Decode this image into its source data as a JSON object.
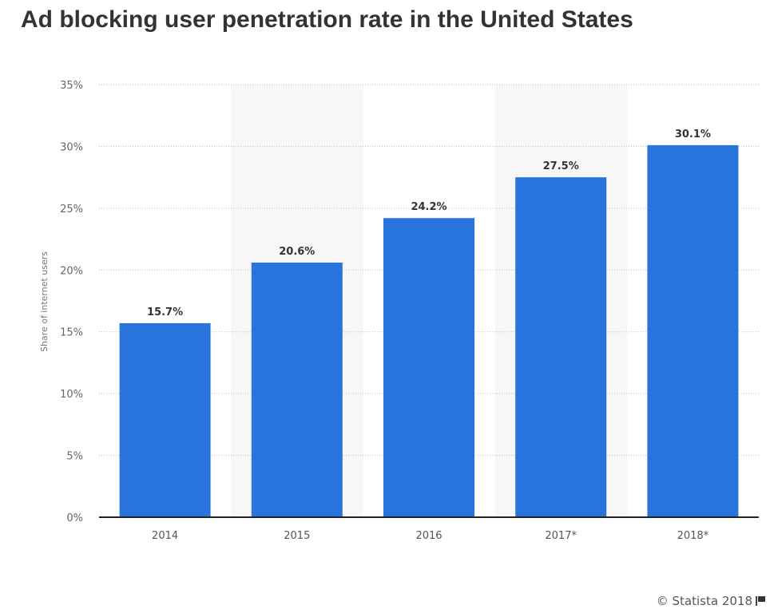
{
  "chart_data": {
    "type": "bar",
    "title": "Ad blocking user penetration rate in the United States",
    "xlabel": "",
    "ylabel": "Share of internet users",
    "categories": [
      "2014",
      "2015",
      "2016",
      "2017*",
      "2018*"
    ],
    "values": [
      15.7,
      20.6,
      24.2,
      27.5,
      30.1
    ],
    "data_labels": [
      "15.7%",
      "20.6%",
      "24.2%",
      "27.5%",
      "30.1%"
    ],
    "ylim": [
      0,
      35
    ],
    "yticks": [
      0,
      5,
      10,
      15,
      20,
      25,
      30,
      35
    ],
    "ytick_labels": [
      "0%",
      "5%",
      "10%",
      "15%",
      "20%",
      "25%",
      "30%",
      "35%"
    ],
    "grid": true,
    "bar_color": "#2874dc"
  },
  "credit": "© Statista 2018",
  "flag_icon": "flag-icon"
}
